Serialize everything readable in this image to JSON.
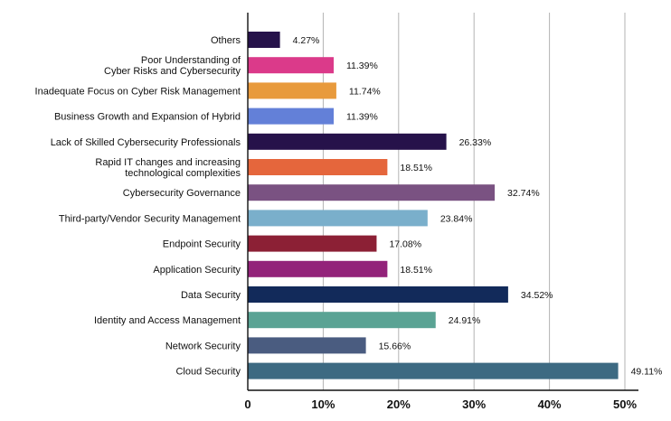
{
  "chart_data": {
    "type": "bar",
    "orientation": "horizontal",
    "title": "",
    "xlabel": "",
    "ylabel": "",
    "xlim": [
      0,
      50
    ],
    "grid": true,
    "x_ticks": [
      "0",
      "10%",
      "20%",
      "30%",
      "40%",
      "50%"
    ],
    "categories": [
      [
        "Others"
      ],
      [
        "Poor Understanding of",
        "Cyber Risks and Cybersecurity"
      ],
      [
        "Inadequate Focus on Cyber Risk Management"
      ],
      [
        "Business Growth and Expansion of Hybrid"
      ],
      [
        "Lack of Skilled Cybersecurity Professionals"
      ],
      [
        "Rapid IT changes and increasing",
        "technological complexities"
      ],
      [
        "Cybersecurity Governance"
      ],
      [
        "Third-party/Vendor Security Management"
      ],
      [
        "Endpoint Security"
      ],
      [
        "Application Security"
      ],
      [
        "Data Security"
      ],
      [
        "Identity and Access Management"
      ],
      [
        "Network Security"
      ],
      [
        "Cloud Security"
      ]
    ],
    "values": [
      4.27,
      11.39,
      11.74,
      11.39,
      26.33,
      18.51,
      32.74,
      23.84,
      17.08,
      18.51,
      34.52,
      24.91,
      15.66,
      49.11
    ],
    "value_labels": [
      "4.27%",
      "11.39%",
      "11.74%",
      "11.39%",
      "26.33%",
      "18.51%",
      "32.74%",
      "23.84%",
      "17.08%",
      "18.51%",
      "34.52%",
      "24.91%",
      "15.66%",
      "49.11%"
    ],
    "colors": [
      "#26124a",
      "#db3a8a",
      "#e89a3c",
      "#6380d8",
      "#26124a",
      "#e5663c",
      "#7a5282",
      "#7aafcb",
      "#8c2035",
      "#93237a",
      "#122a5a",
      "#5aa394",
      "#4a5c80",
      "#3d6a82"
    ]
  }
}
